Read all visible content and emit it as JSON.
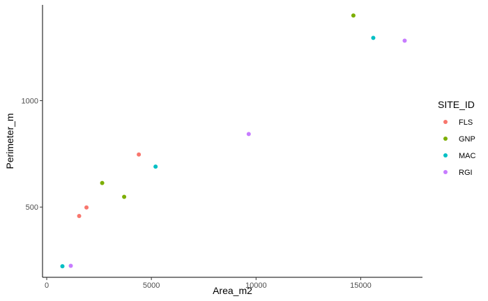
{
  "chart_data": {
    "type": "scatter",
    "title": "",
    "xlabel": "Area_m2",
    "ylabel": "Perimeter_m",
    "xlim": [
      -200,
      17950
    ],
    "ylim": [
      170,
      1450
    ],
    "x_ticks": [
      {
        "value": 0,
        "label": "0"
      },
      {
        "value": 5000,
        "label": "5000"
      },
      {
        "value": 10000,
        "label": "10000"
      },
      {
        "value": 15000,
        "label": "15000"
      }
    ],
    "y_ticks": [
      {
        "value": 500,
        "label": "500"
      },
      {
        "value": 1000,
        "label": "1000"
      }
    ],
    "grid": false,
    "legend": {
      "title": "SITE_ID",
      "position": "right"
    },
    "series": [
      {
        "name": "FLS",
        "color": "#F8766D",
        "points": [
          [
            1550,
            458
          ],
          [
            1900,
            498
          ],
          [
            4400,
            747
          ]
        ]
      },
      {
        "name": "GNP",
        "color": "#7CAE00",
        "points": [
          [
            2650,
            613
          ],
          [
            3700,
            548
          ],
          [
            14650,
            1400
          ]
        ]
      },
      {
        "name": "MAC",
        "color": "#00BFC4",
        "points": [
          [
            750,
            222
          ],
          [
            5200,
            690
          ],
          [
            15600,
            1295
          ]
        ]
      },
      {
        "name": "RGI",
        "color": "#C77CFF",
        "points": [
          [
            1150,
            224
          ],
          [
            9650,
            843
          ],
          [
            17100,
            1282
          ]
        ]
      }
    ]
  }
}
